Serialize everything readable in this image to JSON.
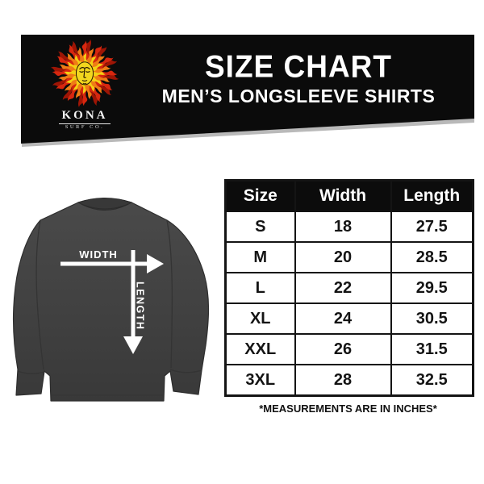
{
  "banner": {
    "bg_color": "#0b0b0b",
    "logo": {
      "icon": "sun-flames-icon",
      "brand": "KONA",
      "sub_brand": "SURF CO."
    },
    "title": "SIZE CHART",
    "subtitle": "MEN’S LONGSLEEVE SHIRTS"
  },
  "diagram": {
    "width_label": "WIDTH",
    "length_label": "LENGTH",
    "shirt_color": "#414141",
    "arrow_color": "#ffffff"
  },
  "size_table": {
    "columns": [
      "Size",
      "Width",
      "Length"
    ],
    "rows": [
      [
        "S",
        "18",
        "27.5"
      ],
      [
        "M",
        "20",
        "28.5"
      ],
      [
        "L",
        "22",
        "29.5"
      ],
      [
        "XL",
        "24",
        "30.5"
      ],
      [
        "XXL",
        "26",
        "31.5"
      ],
      [
        "3XL",
        "28",
        "32.5"
      ]
    ]
  },
  "footnote": "*MEASUREMENTS ARE IN INCHES*",
  "chart_data": {
    "type": "table",
    "title": "SIZE CHART",
    "subtitle": "MEN’S LONGSLEEVE SHIRTS",
    "columns": [
      "Size",
      "Width",
      "Length"
    ],
    "rows": [
      [
        "S",
        18,
        27.5
      ],
      [
        "M",
        20,
        28.5
      ],
      [
        "L",
        22,
        29.5
      ],
      [
        "XL",
        24,
        30.5
      ],
      [
        "XXL",
        26,
        31.5
      ],
      [
        "3XL",
        28,
        32.5
      ]
    ],
    "units": "inches",
    "note": "*MEASUREMENTS ARE IN INCHES*"
  }
}
